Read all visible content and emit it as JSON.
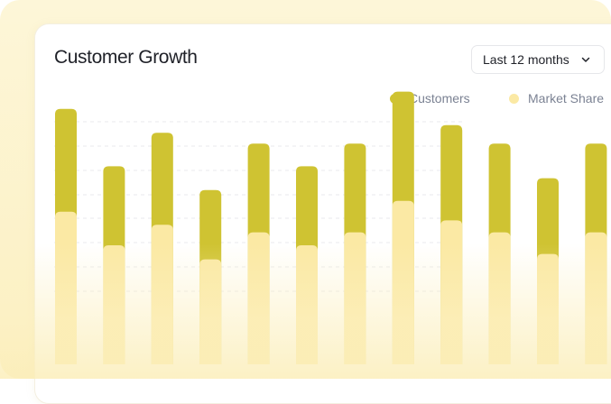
{
  "widget": {
    "title": "Customer Growth",
    "range_label": "Last 12 months"
  },
  "colors": {
    "customers": "#cfc332",
    "market_share": "#fbe9a4",
    "gridline": "#e9e9ec"
  },
  "icons": {
    "range_chevron": "chevron-down-icon"
  },
  "chart_data": {
    "type": "bar",
    "stacked": true,
    "categories": [
      "",
      "",
      "",
      "",
      "",
      "",
      "",
      "",
      "",
      "",
      "",
      ""
    ],
    "series": [
      {
        "name": "Customers",
        "values": [
          95,
          73,
          85,
          64,
          82,
          73,
          82,
          101,
          88,
          82,
          70,
          82
        ]
      },
      {
        "name": "Market Share",
        "values": [
          141,
          110,
          129,
          97,
          122,
          110,
          122,
          151,
          133,
          122,
          102,
          122
        ]
      }
    ],
    "ylim": [
      0,
      250
    ],
    "grid": true,
    "legend": "top-right",
    "xlabel": "",
    "ylabel": ""
  }
}
